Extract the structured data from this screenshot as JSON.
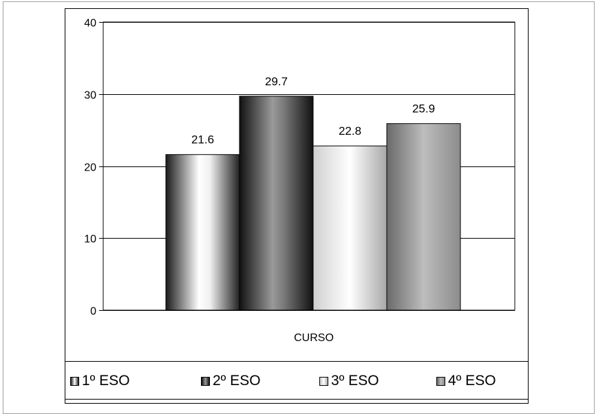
{
  "chart_data": {
    "type": "bar",
    "categories": [
      "CURSO"
    ],
    "series": [
      {
        "name": "1º ESO",
        "values": [
          21.6
        ],
        "fill": "light-gradient"
      },
      {
        "name": "2º ESO",
        "values": [
          29.7
        ],
        "fill": "dark-gradient"
      },
      {
        "name": "3º ESO",
        "values": [
          22.8
        ],
        "fill": "light-gradient"
      },
      {
        "name": "4º ESO",
        "values": [
          25.9
        ],
        "fill": "medium-gradient"
      }
    ],
    "data_labels": [
      "21.6",
      "29.7",
      "22.8",
      "25.9"
    ],
    "title": "",
    "xlabel": "CURSO",
    "ylabel": "",
    "ylim": [
      0,
      40
    ],
    "yticks": [
      "0",
      "10",
      "20",
      "30",
      "40"
    ],
    "grid": true,
    "legend_position": "bottom"
  },
  "colors": {
    "grid": "#000000",
    "border": "#000000"
  }
}
